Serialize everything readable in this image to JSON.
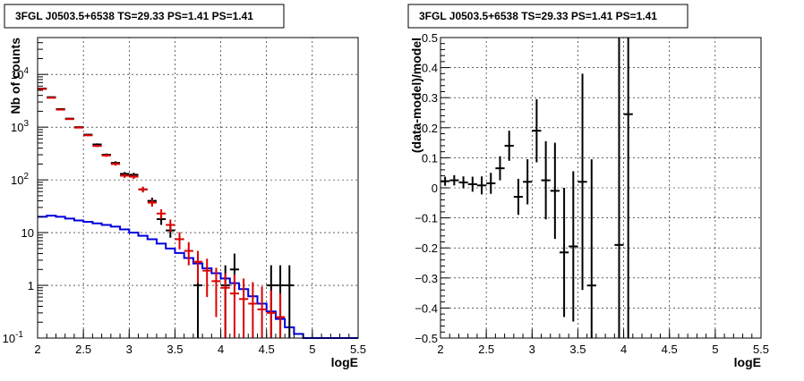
{
  "chart_data": [
    {
      "type": "histogram",
      "title": "3FGL J0503.5+6538 TS=29.33 PS=1.41 PS=1.41",
      "xlabel": "logE",
      "ylabel": "Nb of counts",
      "xlim": [
        2,
        5.5
      ],
      "ylim": [
        0.1,
        50000
      ],
      "yscale": "log",
      "grid": true,
      "x_tick_labels": [
        "2",
        "2.5",
        "3",
        "3.5",
        "4",
        "4.5",
        "5",
        "5.5"
      ],
      "y_tick_labels": [
        "10^{-1}",
        "1",
        "10",
        "10^{2}",
        "10^{3}",
        "10^{4}"
      ],
      "bin_width": 0.1,
      "series": [
        {
          "role": "data",
          "color": "#000000",
          "x": [
            2.05,
            2.15,
            2.25,
            2.35,
            2.45,
            2.55,
            2.65,
            2.75,
            2.85,
            2.95,
            3.05,
            3.15,
            3.25,
            3.35,
            3.45,
            3.75,
            4.05,
            4.15,
            4.55,
            4.65,
            4.75
          ],
          "y": [
            5400,
            3700,
            2200,
            1450,
            1000,
            720,
            470,
            300,
            210,
            130,
            125,
            66,
            40,
            18,
            11,
            1,
            1,
            2,
            1,
            1,
            1
          ],
          "yerr_lo": [
            70,
            60,
            45,
            38,
            32,
            27,
            22,
            17,
            15,
            11,
            11,
            8,
            6,
            4,
            3,
            0.9,
            0.9,
            1.4,
            0.9,
            0.9,
            0.9
          ],
          "yerr_hi": [
            70,
            60,
            45,
            38,
            32,
            27,
            22,
            17,
            15,
            11,
            11,
            8,
            6,
            4,
            3,
            1.4,
            1.4,
            2,
            1.4,
            1.4,
            1.4
          ]
        },
        {
          "role": "model",
          "color": "#dd0000",
          "x": [
            2.05,
            2.15,
            2.25,
            2.35,
            2.45,
            2.55,
            2.65,
            2.75,
            2.85,
            2.95,
            3.05,
            3.15,
            3.25,
            3.35,
            3.45,
            3.55,
            3.65,
            3.75,
            3.85,
            3.95,
            4.05,
            4.15,
            4.25,
            4.35,
            4.45,
            4.55,
            4.65
          ],
          "y": [
            5300,
            3600,
            2150,
            1420,
            980,
            700,
            440,
            290,
            200,
            120,
            115,
            66,
            37,
            23,
            14,
            7.5,
            4.5,
            2.8,
            1.9,
            1.2,
            0.9,
            0.7,
            0.55,
            0.45,
            0.35,
            0.3,
            0.25
          ],
          "yerr_lo": [
            75,
            60,
            46,
            38,
            31,
            26,
            21,
            17,
            14,
            11,
            11,
            8,
            6,
            4.8,
            3.7,
            2.7,
            2.1,
            1.7,
            1.3,
            0.95,
            0.8,
            0.62,
            0.5,
            0.42,
            0.33,
            0.28,
            0.24
          ],
          "yerr_hi": [
            75,
            60,
            46,
            38,
            31,
            26,
            21,
            17,
            14,
            11,
            11,
            8,
            6,
            4.8,
            3.7,
            2.7,
            2.1,
            1.7,
            1.3,
            0.95,
            0.8,
            0.9,
            0.8,
            0.7,
            0.6,
            0.5,
            0.45
          ]
        },
        {
          "role": "background",
          "color": "#0000dd",
          "style": "step",
          "x_edges": [
            2.0,
            2.1,
            2.2,
            2.3,
            2.4,
            2.5,
            2.6,
            2.7,
            2.8,
            2.9,
            3.0,
            3.1,
            3.2,
            3.3,
            3.4,
            3.5,
            3.6,
            3.7,
            3.8,
            3.9,
            4.0,
            4.1,
            4.2,
            4.3,
            4.4,
            4.5,
            4.6,
            4.7,
            4.8,
            4.9,
            5.0,
            5.1,
            5.2,
            5.3,
            5.4,
            5.5
          ],
          "y": [
            20,
            21,
            20,
            18.5,
            17,
            16,
            15,
            14,
            13,
            11.5,
            10,
            8.7,
            7.5,
            6.2,
            5,
            4.1,
            3.3,
            2.6,
            2.1,
            1.7,
            1.35,
            1.1,
            0.85,
            0.62,
            0.45,
            0.32,
            0.23,
            0.16,
            0.12,
            0.1,
            0.1,
            0.1,
            0.1,
            0.1,
            0.1
          ]
        }
      ]
    },
    {
      "type": "scatter",
      "title": "3FGL J0503.5+6538 TS=29.33 PS=1.41 PS=1.41",
      "xlabel": "logE",
      "ylabel": "(data-model)/model",
      "xlim": [
        2,
        5.5
      ],
      "ylim": [
        -0.5,
        0.5
      ],
      "grid": true,
      "x_tick_labels": [
        "2",
        "2.5",
        "3",
        "3.5",
        "4",
        "4.5",
        "5",
        "5.5"
      ],
      "y_tick_labels": [
        "−0.5",
        "−0.4",
        "−0.3",
        "−0.2",
        "−0.1",
        "0",
        "0.1",
        "0.2",
        "0.3",
        "0.4",
        "0.5"
      ],
      "bin_width": 0.1,
      "series": [
        {
          "role": "residual",
          "color": "#000000",
          "x": [
            2.05,
            2.15,
            2.25,
            2.35,
            2.45,
            2.55,
            2.65,
            2.75,
            2.85,
            2.95,
            3.05,
            3.15,
            3.25,
            3.35,
            3.45,
            3.55,
            3.65,
            3.95,
            4.05
          ],
          "y": [
            0.022,
            0.025,
            0.018,
            0.012,
            0.008,
            0.015,
            0.065,
            0.14,
            -0.03,
            0.02,
            0.19,
            0.025,
            -0.01,
            -0.215,
            -0.195,
            0.02,
            -0.325,
            -0.19,
            0.245
          ],
          "yerr": [
            0.015,
            0.017,
            0.02,
            0.025,
            0.03,
            0.035,
            0.04,
            0.05,
            0.06,
            0.075,
            0.105,
            0.13,
            0.16,
            0.215,
            0.25,
            0.36,
            0.42,
            2.0,
            2.5
          ]
        }
      ]
    }
  ]
}
